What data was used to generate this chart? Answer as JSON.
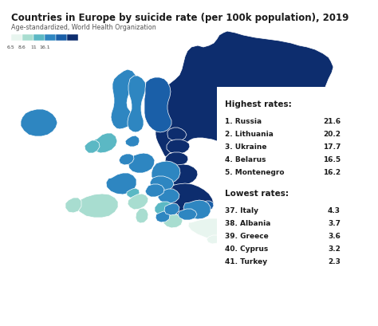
{
  "title": "Countries in Europe by suicide rate (per 100k population), 2019",
  "subtitle": "Age-standardized, World Health Organization",
  "colorbar_values": [
    "6.5",
    "8.6",
    "11",
    "16.1"
  ],
  "highest_label": "Highest rates:",
  "lowest_label": "Lowest rates:",
  "highest": [
    {
      "rank": "1.",
      "country": "Russia",
      "value": "21.6"
    },
    {
      "rank": "2.",
      "country": "Lithuania",
      "value": "20.2"
    },
    {
      "rank": "3.",
      "country": "Ukraine",
      "value": "17.7"
    },
    {
      "rank": "4.",
      "country": "Belarus",
      "value": "16.5"
    },
    {
      "rank": "5.",
      "country": "Montenegro",
      "value": "16.2"
    }
  ],
  "lowest": [
    {
      "rank": "37.",
      "country": "Italy",
      "value": "4.3"
    },
    {
      "rank": "38.",
      "country": "Albania",
      "value": "3.7"
    },
    {
      "rank": "39.",
      "country": "Greece",
      "value": "3.6"
    },
    {
      "rank": "40.",
      "country": "Cyprus",
      "value": "3.2"
    },
    {
      "rank": "41.",
      "country": "Turkey",
      "value": "2.3"
    }
  ],
  "bg_color": "#ffffff",
  "text_color": "#1a1a1a",
  "color_very_low": "#e8f5ef",
  "color_low": "#a8ddd0",
  "color_mid_low": "#5bb8c4",
  "color_mid": "#2e86c1",
  "color_high": "#1a5fa8",
  "color_very_high": "#0d2d6e"
}
